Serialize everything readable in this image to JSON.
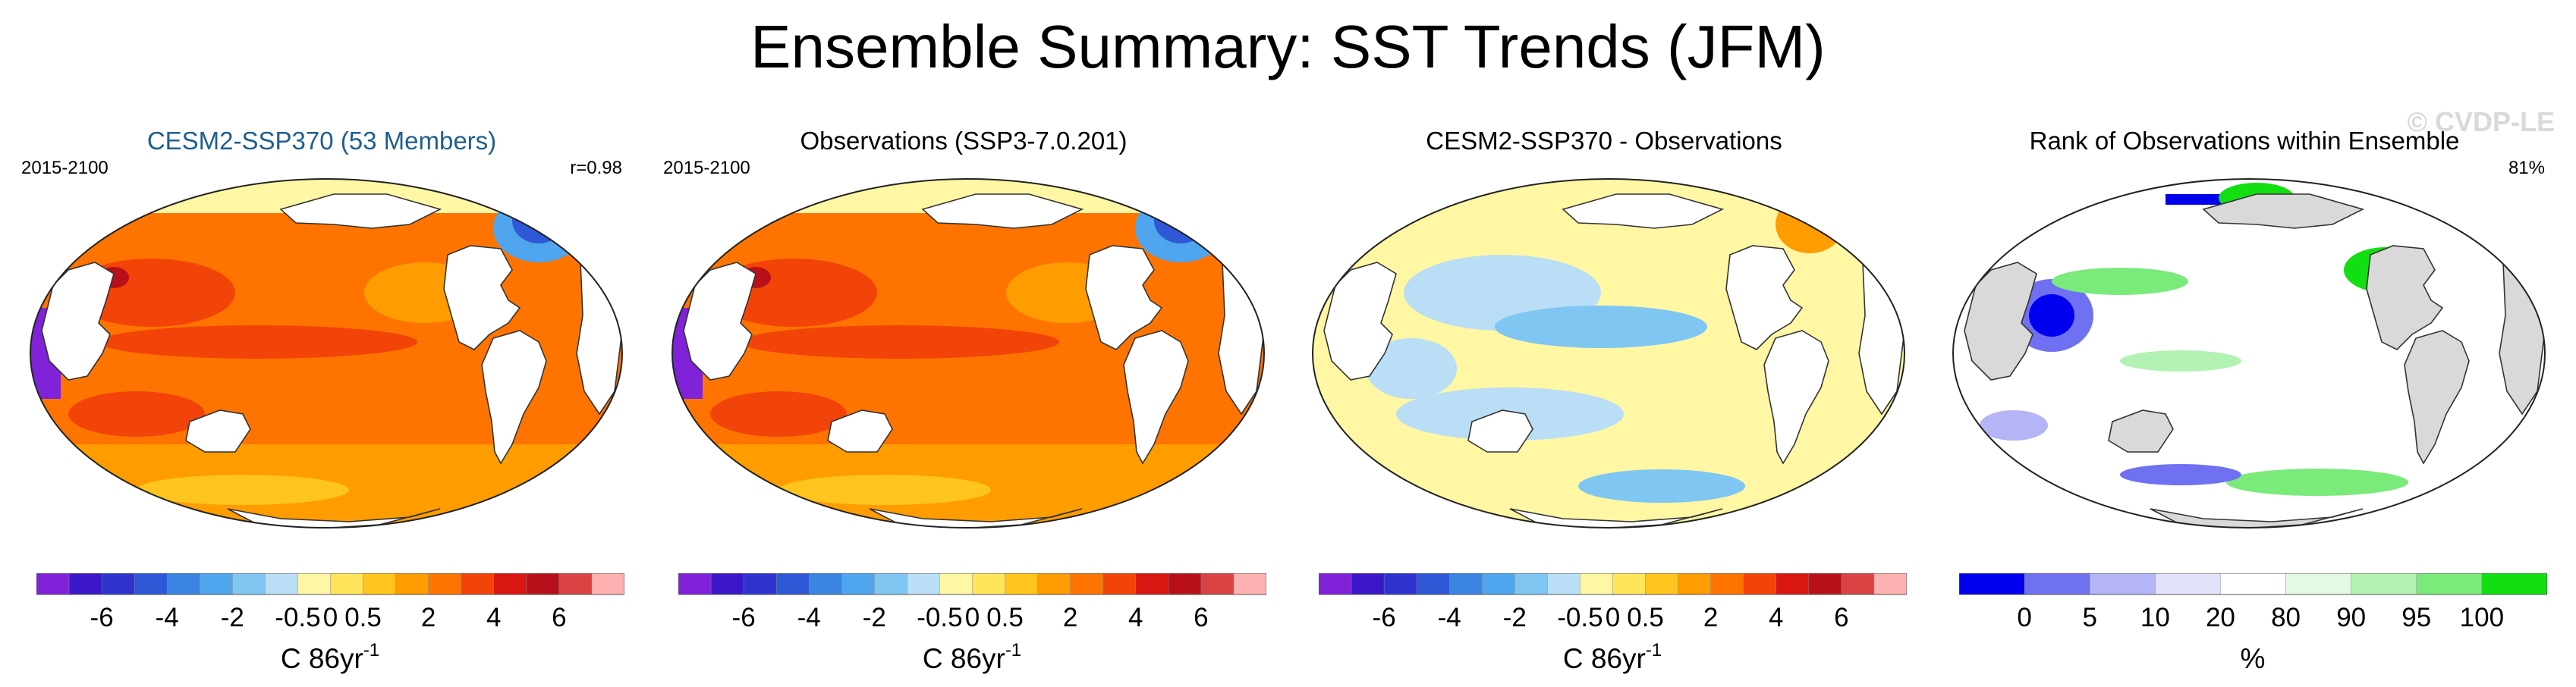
{
  "title": "Ensemble Summary: SST Trends (JFM)",
  "watermark": "© CVDP-LE",
  "panels": [
    {
      "title": "CESM2-SSP370 (53 Members)",
      "left_label": "2015-2100",
      "right_label": "r=0.98",
      "map_type": "warming"
    },
    {
      "title": "Observations (SSP3-7.0.201)",
      "left_label": "2015-2100",
      "right_label": "",
      "map_type": "warming"
    },
    {
      "title": "CESM2-SSP370 - Observations",
      "left_label": "",
      "right_label": "",
      "map_type": "difference"
    },
    {
      "title": "Rank of Observations within Ensemble",
      "left_label": "",
      "right_label": "81%",
      "map_type": "rank"
    }
  ],
  "colors": {
    "trend_scale": [
      "#7f22d8",
      "#3b17c9",
      "#2e33cf",
      "#2f58d6",
      "#3a84e2",
      "#4fa6ee",
      "#7fc6f3",
      "#b9def5",
      "#fff7a4",
      "#ffe45c",
      "#ffc41d",
      "#ff9c00",
      "#ff7400",
      "#f24408",
      "#d91612",
      "#b8101b",
      "#d94343",
      "#ffb0b0"
    ],
    "rank_scale": [
      "#0000ee",
      "#7070f2",
      "#b4b4f7",
      "#e2e2fb",
      "#ffffff",
      "#e2fae2",
      "#b2f2b2",
      "#7aea7a",
      "#12df12"
    ],
    "land_rank": "#d9d9d9",
    "ocean_background": "#ffffff"
  },
  "chart_data": [
    {
      "type": "heatmap",
      "panel": "CESM2-SSP370 (53 Members)",
      "colorbar_ticks": [
        "-6",
        "-4",
        "-2",
        "-0.5",
        "0",
        "0.5",
        "2",
        "4",
        "6"
      ],
      "colorbar_label": "C 86yr",
      "colorbar_superscript": "-1",
      "dominant_range": [
        2,
        4
      ],
      "arctic_cooling_min": -6
    },
    {
      "type": "heatmap",
      "panel": "Observations (SSP3-7.0.201)",
      "colorbar_ticks": [
        "-6",
        "-4",
        "-2",
        "-0.5",
        "0",
        "0.5",
        "2",
        "4",
        "6"
      ],
      "colorbar_label": "C 86yr",
      "colorbar_superscript": "-1",
      "dominant_range": [
        2,
        4
      ],
      "arctic_cooling_min": -6
    },
    {
      "type": "heatmap",
      "panel": "CESM2-SSP370 - Observations",
      "colorbar_ticks": [
        "-6",
        "-4",
        "-2",
        "-0.5",
        "0",
        "0.5",
        "2",
        "4",
        "6"
      ],
      "colorbar_label": "C 86yr",
      "colorbar_superscript": "-1",
      "dominant_range": [
        -0.5,
        0.5
      ]
    },
    {
      "type": "heatmap",
      "panel": "Rank of Observations within Ensemble",
      "colorbar_ticks": [
        "0",
        "5",
        "10",
        "20",
        "80",
        "90",
        "95",
        "100"
      ],
      "colorbar_label": "%",
      "summary_value": 81
    }
  ]
}
